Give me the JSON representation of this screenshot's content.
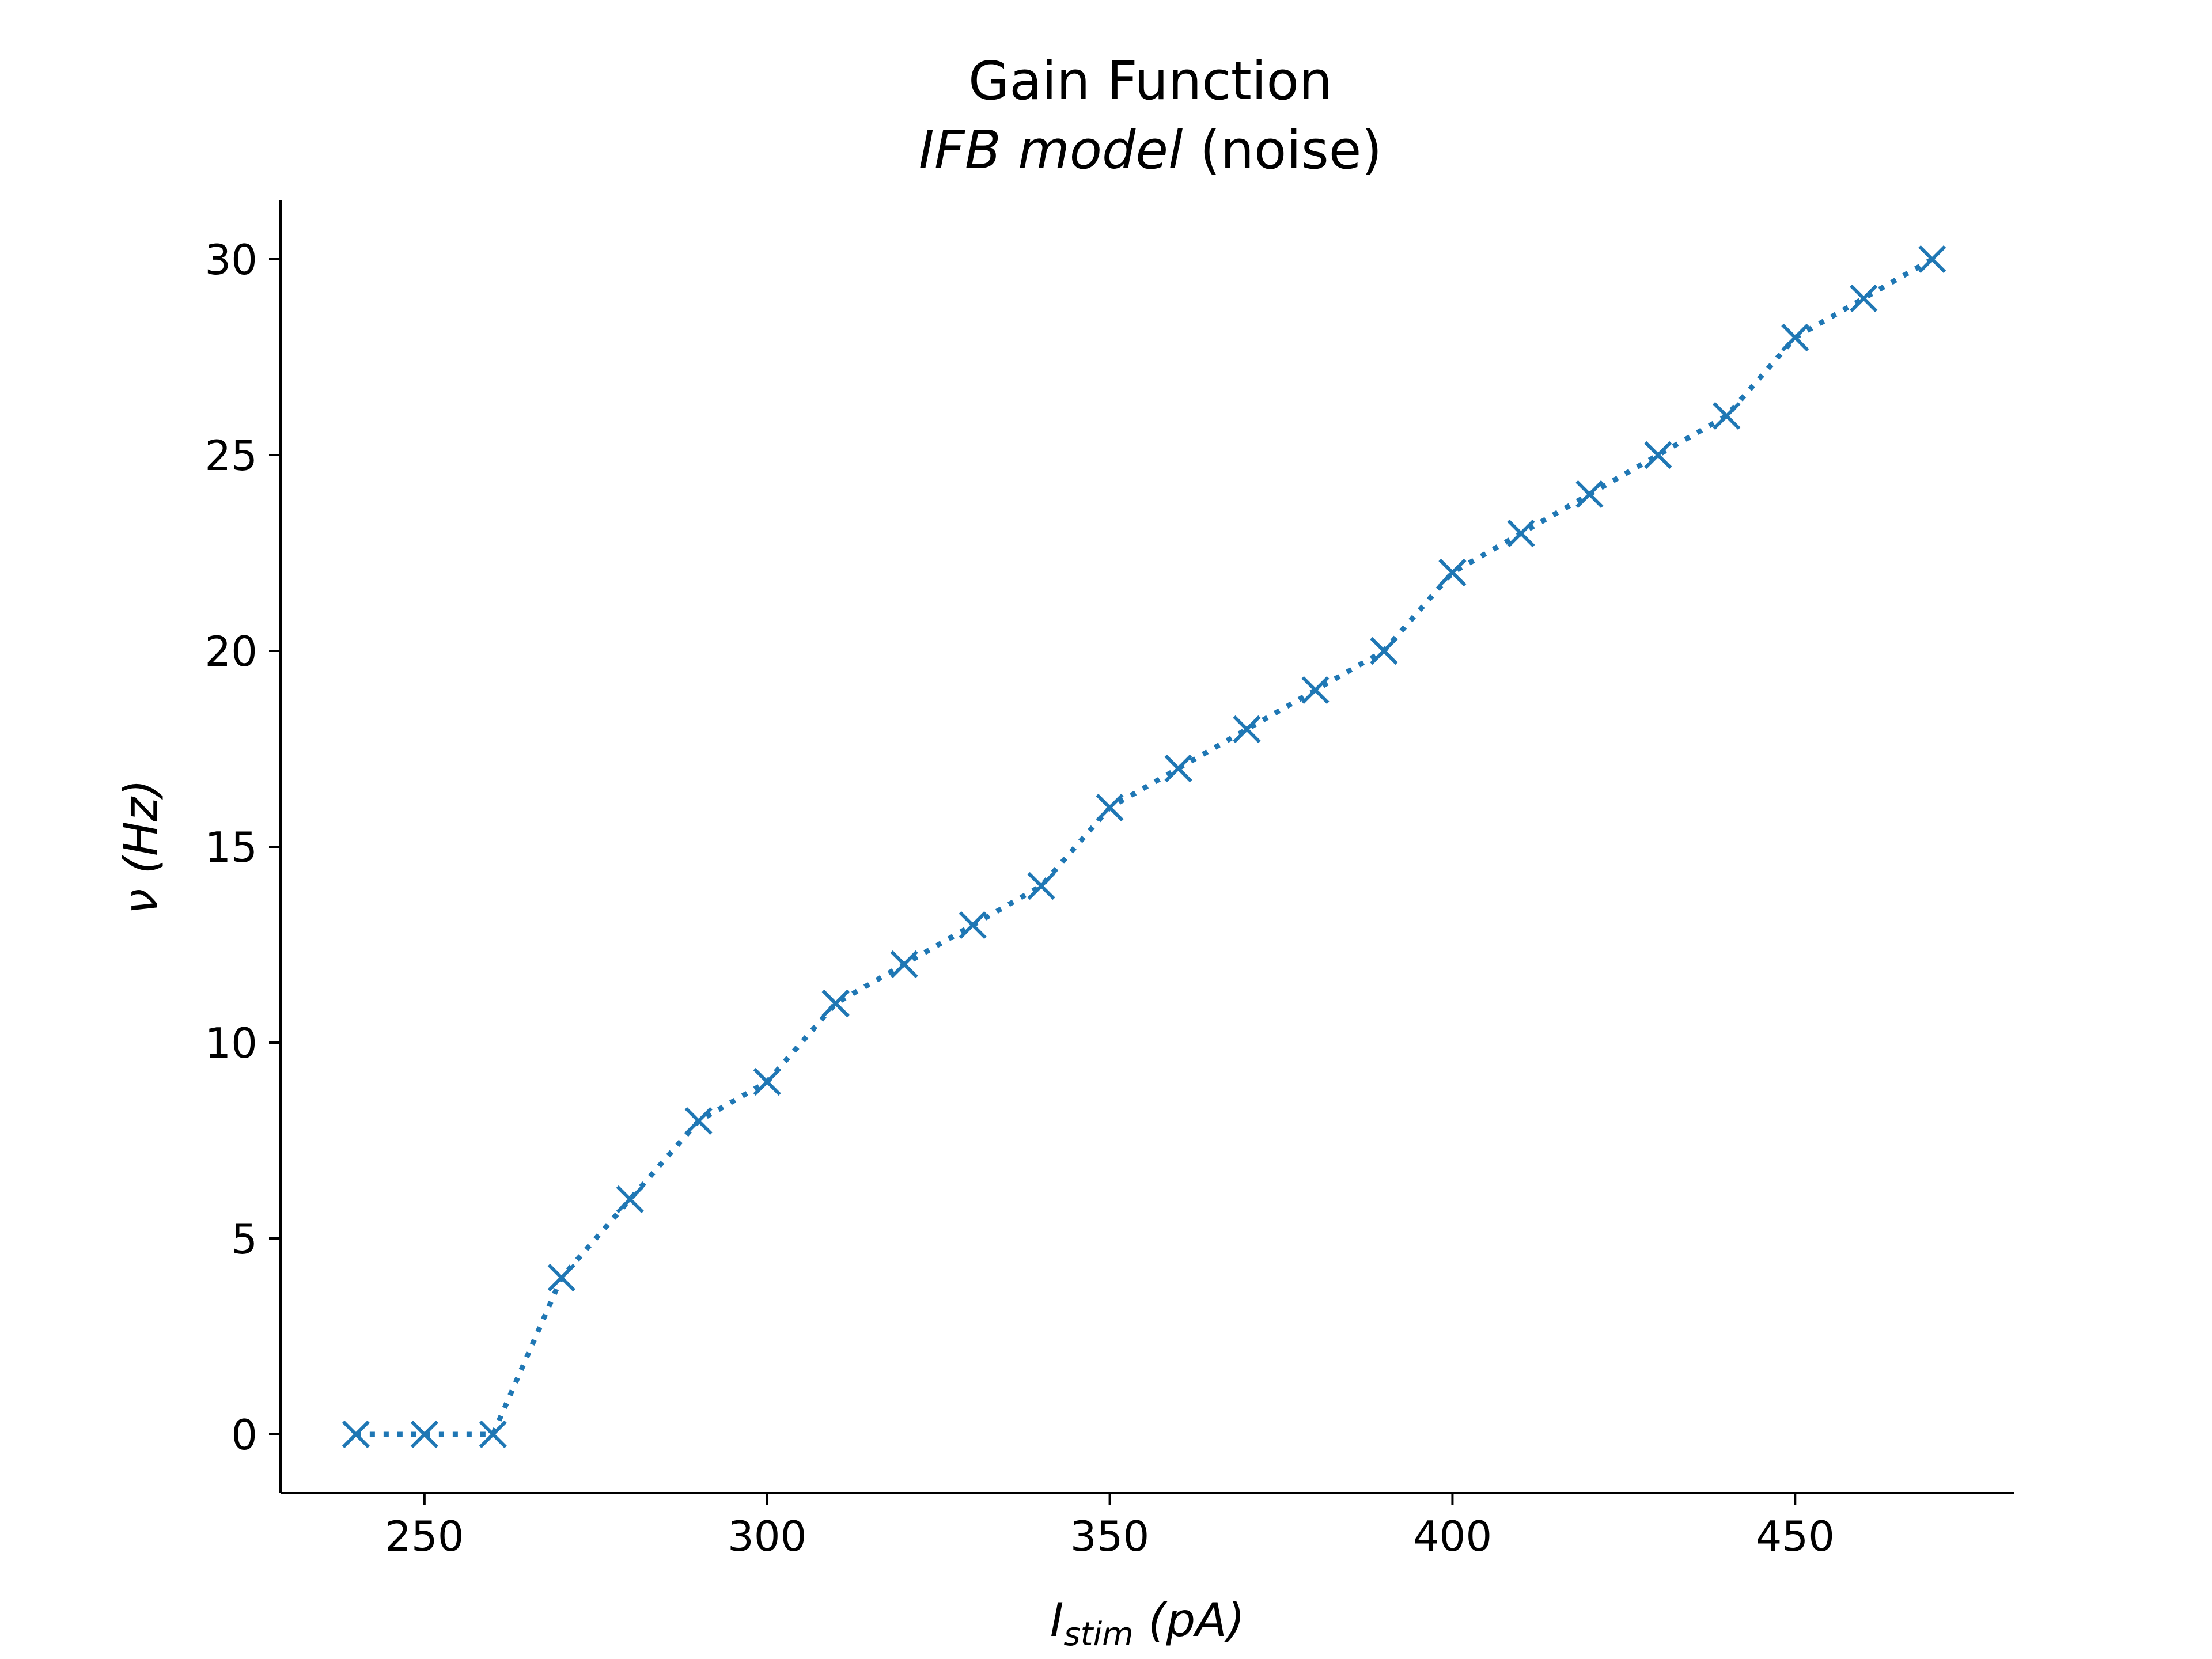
{
  "chart_data": {
    "type": "line",
    "title": "Gain Function",
    "subtitle_italic": "IFB model",
    "subtitle_plain": "(noise)",
    "xlabel": {
      "main": "I",
      "sub": "stim",
      "unit": "(pA)"
    },
    "ylabel": {
      "main": "ν",
      "unit": "(Hz)"
    },
    "xlim": [
      229,
      482
    ],
    "ylim": [
      -1.5,
      31.5
    ],
    "xticks": [
      250,
      300,
      350,
      400,
      450
    ],
    "yticks": [
      0,
      5,
      10,
      15,
      20,
      25,
      30
    ],
    "grid": false,
    "marker": "x",
    "line_style": "dotted",
    "color": "#1f77b4",
    "series": [
      {
        "x": [
          240,
          250,
          260,
          270,
          280,
          290,
          300,
          310,
          320,
          330,
          340,
          350,
          360,
          370,
          380,
          390,
          400,
          410,
          420,
          430,
          440,
          450,
          460,
          470
        ],
        "y": [
          0,
          0,
          0,
          4,
          6,
          8,
          9,
          11,
          12,
          13,
          14,
          16,
          17,
          18,
          19,
          20,
          22,
          23,
          24,
          25,
          26,
          28,
          29,
          30
        ]
      }
    ]
  }
}
